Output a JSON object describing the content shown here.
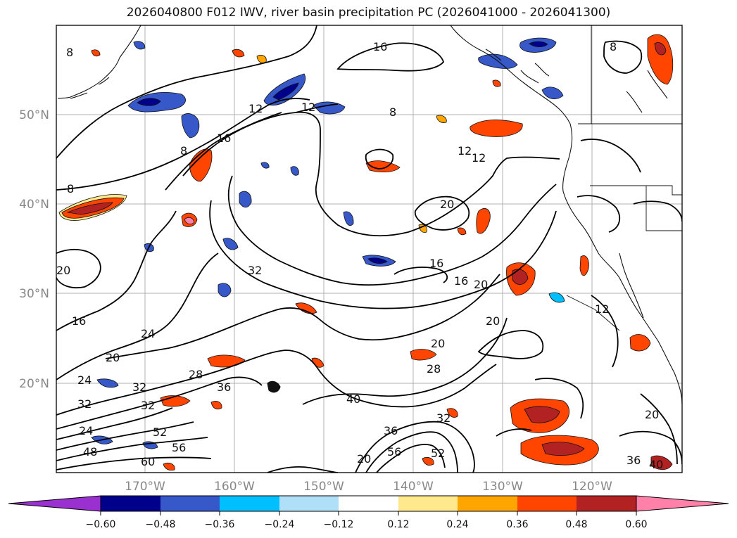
{
  "title": "2026040800 F012 IWV, river basin precipitation PC (2026041000 - 2026041300)",
  "map": {
    "lat_ticks": [
      "50°N",
      "40°N",
      "30°N",
      "20°N"
    ],
    "lon_ticks": [
      "170°W",
      "160°W",
      "150°W",
      "140°W",
      "130°W",
      "120°W"
    ],
    "contour_labels": [
      "8",
      "16",
      "12",
      "12",
      "8",
      "16",
      "8",
      "12",
      "12",
      "20",
      "16",
      "16",
      "20",
      "20",
      "20",
      "24",
      "20",
      "24",
      "32",
      "32",
      "28",
      "36",
      "32",
      "28",
      "20",
      "40",
      "52",
      "56",
      "60",
      "48",
      "24",
      "32",
      "36",
      "56",
      "52",
      "36",
      "40",
      "20",
      "12",
      "8",
      "8",
      "20",
      "32",
      "16"
    ]
  },
  "colorbar": {
    "ticks": [
      "−0.60",
      "−0.48",
      "−0.36",
      "−0.24",
      "−0.12",
      "0.12",
      "0.24",
      "0.36",
      "0.48",
      "0.60"
    ],
    "colors": [
      "#9b30d0",
      "#00008b",
      "#3658c8",
      "#00bfff",
      "#b0e0f8",
      "#ffffff",
      "#ffe98c",
      "#ffa500",
      "#ff4500",
      "#b22222",
      "#ff80a8",
      "#ff80a8"
    ]
  }
}
